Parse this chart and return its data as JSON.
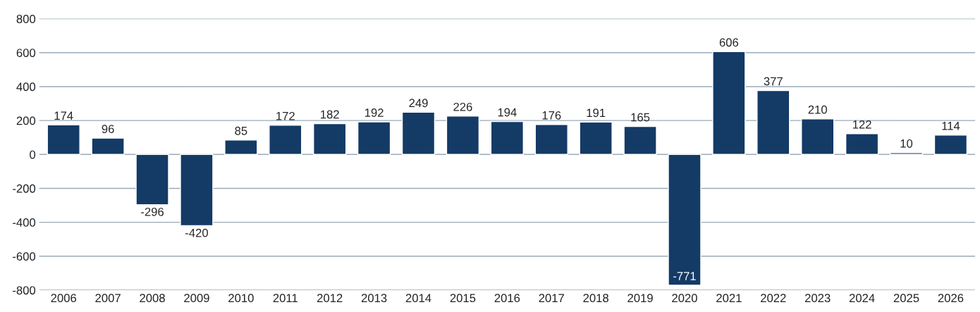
{
  "chart_data": {
    "type": "bar",
    "categories": [
      "2006",
      "2007",
      "2008",
      "2009",
      "2010",
      "2011",
      "2012",
      "2013",
      "2014",
      "2015",
      "2016",
      "2017",
      "2018",
      "2019",
      "2020",
      "2021",
      "2022",
      "2023",
      "2024",
      "2025",
      "2026"
    ],
    "values": [
      174,
      96,
      -296,
      -420,
      85,
      172,
      182,
      192,
      249,
      226,
      194,
      176,
      191,
      165,
      -771,
      606,
      377,
      210,
      122,
      10,
      114
    ],
    "color": "#143a66",
    "ylim": [
      -800,
      800
    ],
    "yticks": [
      {
        "value": -800,
        "label": "-800"
      },
      {
        "value": -600,
        "label": "-600"
      },
      {
        "value": -400,
        "label": "-400"
      },
      {
        "value": -200,
        "label": "-200"
      },
      0,
      200,
      400,
      600,
      800
    ],
    "grid": "y",
    "data_labels": true
  }
}
